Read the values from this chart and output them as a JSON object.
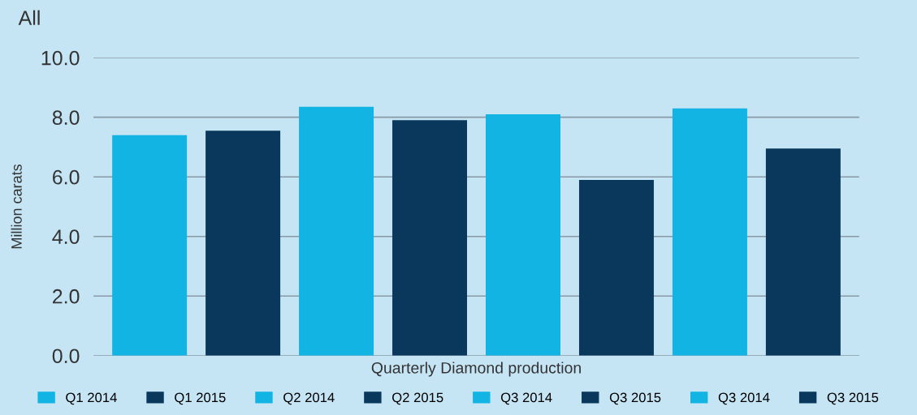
{
  "chart_data": {
    "type": "bar",
    "title": "All",
    "xlabel": "Quarterly Diamond production",
    "ylabel": "Million carats",
    "categories": [
      null,
      null,
      null,
      null,
      null,
      null,
      null,
      null
    ],
    "series": [
      {
        "name": "Q1 2014",
        "color": "#12b4e3",
        "values": [
          7.4,
          null,
          null,
          null,
          null,
          null,
          null,
          null
        ]
      },
      {
        "name": "Q1 2015",
        "color": "#09385c",
        "values": [
          null,
          7.55,
          null,
          null,
          null,
          null,
          null,
          null
        ]
      },
      {
        "name": "Q2 2014",
        "color": "#12b4e3",
        "values": [
          null,
          null,
          8.35,
          null,
          null,
          null,
          null,
          null
        ]
      },
      {
        "name": "Q2 2015",
        "color": "#09385c",
        "values": [
          null,
          null,
          null,
          7.9,
          null,
          null,
          null,
          null
        ]
      },
      {
        "name": "Q3 2014",
        "color": "#12b4e3",
        "values": [
          null,
          null,
          null,
          null,
          8.1,
          null,
          null,
          null
        ]
      },
      {
        "name": "Q3 2015",
        "color": "#09385c",
        "values": [
          null,
          null,
          null,
          null,
          null,
          5.9,
          null,
          null
        ]
      },
      {
        "name": "Q3 2014",
        "color": "#12b4e3",
        "values": [
          null,
          null,
          null,
          null,
          null,
          null,
          8.3,
          null
        ]
      },
      {
        "name": "Q3 2015",
        "color": "#09385c",
        "values": [
          null,
          null,
          null,
          null,
          null,
          null,
          null,
          6.95
        ]
      }
    ],
    "ylim": [
      0,
      10
    ],
    "yticks": [
      {
        "value": 0,
        "label": "0.0"
      },
      {
        "value": 2,
        "label": "2.0"
      },
      {
        "value": 4,
        "label": "4.0"
      },
      {
        "value": 6,
        "label": "6.0"
      },
      {
        "value": 8,
        "label": "8.0"
      },
      {
        "value": 10,
        "label": "10.0"
      }
    ],
    "grid": "y",
    "legend": "bottom"
  }
}
